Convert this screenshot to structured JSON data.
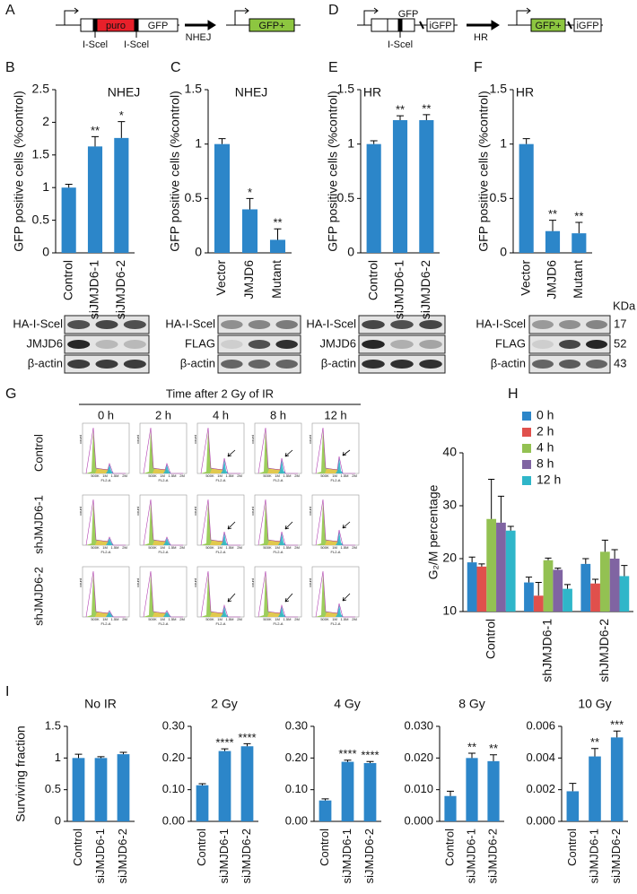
{
  "panel_labels": [
    "A",
    "B",
    "C",
    "D",
    "E",
    "F",
    "G",
    "H",
    "I"
  ],
  "diagram_a": {
    "cassette": "puro",
    "reporter": "GFP",
    "sites": [
      "I-Scel",
      "I-Scel"
    ],
    "pathway": "NHEJ",
    "product": "GFP+"
  },
  "diagram_d": {
    "reporter": "GFP",
    "donor": "iGFP",
    "site": "I-Scel",
    "pathway": "HR",
    "product": "GFP+",
    "product_donor": "iGFP"
  },
  "blots": [
    {
      "labels": [
        "HA-I-Scel",
        "JMJD6",
        "β-actin"
      ]
    },
    {
      "labels": [
        "HA-I-Scel",
        "FLAG",
        "β-actin"
      ]
    },
    {
      "labels": [
        "HA-I-Scel",
        "JMJD6",
        "β-actin"
      ]
    },
    {
      "labels": [
        "HA-I-Scel",
        "FLAG",
        "β-actin"
      ]
    }
  ],
  "molecular_weights": {
    "unit": "KDa",
    "values": [
      17,
      52,
      43
    ]
  },
  "flow": {
    "title": "Time after 2 Gy of IR",
    "times": [
      "0 h",
      "2 h",
      "4 h",
      "8 h",
      "12 h"
    ],
    "rows": [
      "Control",
      "shJMJD6-1",
      "shJMJD6-2"
    ],
    "x_label": "FL2-A",
    "y_label": "count",
    "x_ticks": [
      "500K",
      "1M",
      "1.5M",
      "2M"
    ]
  },
  "chart_data": [
    {
      "type": "bar",
      "title": "NHEJ",
      "y_label": "GFP positive cells (%control)",
      "categories": [
        "Control",
        "siJMJD6-1",
        "siJMJD6-2"
      ],
      "values": [
        1.0,
        1.63,
        1.76
      ],
      "errors": [
        0.05,
        0.15,
        0.25
      ],
      "annotations": [
        null,
        "**",
        "*"
      ],
      "color": "#2c86c9",
      "ylim": [
        0,
        2.5
      ],
      "yticks": [
        0,
        0.5,
        1,
        1.5,
        2,
        2.5
      ]
    },
    {
      "type": "bar",
      "title": "NHEJ",
      "y_label": "GFP positive cells (%control)",
      "categories": [
        "Vector",
        "JMJD6",
        "Mutant"
      ],
      "values": [
        1.0,
        0.4,
        0.12
      ],
      "errors": [
        0.05,
        0.1,
        0.1
      ],
      "annotations": [
        null,
        "*",
        "**"
      ],
      "color": "#2c86c9",
      "ylim": [
        0,
        1.5
      ],
      "yticks": [
        0,
        0.5,
        1,
        1.5
      ]
    },
    {
      "type": "bar",
      "title": "HR",
      "y_label": "GFP positive cells (%control)",
      "categories": [
        "Control",
        "siJMJD6-1",
        "siJMJD6-2"
      ],
      "values": [
        1.0,
        1.22,
        1.22
      ],
      "errors": [
        0.03,
        0.04,
        0.05
      ],
      "annotations": [
        null,
        "**",
        "**"
      ],
      "color": "#2c86c9",
      "ylim": [
        0,
        1.5
      ],
      "yticks": [
        0,
        0.5,
        1,
        1.5
      ]
    },
    {
      "type": "bar",
      "title": "HR",
      "y_label": "GFP positive cells (%control)",
      "categories": [
        "Vector",
        "JMJD6",
        "Mutant"
      ],
      "values": [
        1.0,
        0.2,
        0.18
      ],
      "errors": [
        0.05,
        0.1,
        0.1
      ],
      "annotations": [
        null,
        "**",
        "**"
      ],
      "color": "#2c86c9",
      "ylim": [
        0,
        1.5
      ],
      "yticks": [
        0,
        0.5,
        1,
        1.5
      ]
    },
    {
      "type": "bar",
      "y_label": "G₂/M percentage",
      "legend": "upper right",
      "categories": [
        "Control",
        "shJMJD6-1",
        "shJMJD6-2"
      ],
      "series": [
        {
          "name": "0 h",
          "color": "#2c86c9",
          "values": [
            19.3,
            15.5,
            19.0
          ],
          "errors": [
            1.0,
            1.0,
            1.0
          ]
        },
        {
          "name": "2 h",
          "color": "#e0504c",
          "values": [
            18.5,
            13.0,
            15.3
          ],
          "errors": [
            0.5,
            2.5,
            0.8
          ]
        },
        {
          "name": "4 h",
          "color": "#93c152",
          "values": [
            27.5,
            19.7,
            21.3
          ],
          "errors": [
            7.5,
            0.4,
            2.2
          ]
        },
        {
          "name": "8 h",
          "color": "#8064a2",
          "values": [
            26.8,
            17.9,
            20.0
          ],
          "errors": [
            5.0,
            0.3,
            1.7
          ]
        },
        {
          "name": "12 h",
          "color": "#2fb6c9",
          "values": [
            25.3,
            14.3,
            16.7
          ],
          "errors": [
            0.8,
            0.8,
            2.0
          ]
        }
      ],
      "ylim": [
        10,
        40
      ],
      "yticks": [
        10,
        20,
        30,
        40
      ]
    },
    {
      "type": "bar",
      "title": "No IR",
      "y_label": "Surviving fraction",
      "categories": [
        "Control",
        "siJMJD6-1",
        "siJMJD6-2"
      ],
      "values": [
        1.0,
        1.0,
        1.06
      ],
      "errors": [
        0.06,
        0.02,
        0.03
      ],
      "color": "#2c86c9",
      "ylim": [
        0,
        1.5
      ],
      "yticks": [
        0,
        0.5,
        1,
        1.5
      ]
    },
    {
      "type": "bar",
      "title": "2 Gy",
      "categories": [
        "Control",
        "siJMJD6-1",
        "siJMJD6-2"
      ],
      "values": [
        0.114,
        0.222,
        0.237
      ],
      "errors": [
        0.005,
        0.007,
        0.008
      ],
      "annotations": [
        null,
        "****",
        "****"
      ],
      "color": "#2c86c9",
      "ylim": [
        0,
        0.3
      ],
      "yticks": [
        {
          "value": 0,
          "label": "0.00"
        },
        {
          "value": 0.1,
          "label": "0.10"
        },
        {
          "value": 0.2,
          "label": "0.20"
        },
        {
          "value": 0.3,
          "label": "0.30"
        }
      ]
    },
    {
      "type": "bar",
      "title": "4 Gy",
      "categories": [
        "Control",
        "siJMJD6-1",
        "siJMJD6-2"
      ],
      "values": [
        0.066,
        0.188,
        0.184
      ],
      "errors": [
        0.005,
        0.005,
        0.005
      ],
      "annotations": [
        null,
        "****",
        "****"
      ],
      "color": "#2c86c9",
      "ylim": [
        0,
        0.3
      ],
      "yticks": [
        {
          "value": 0,
          "label": "0.00"
        },
        {
          "value": 0.1,
          "label": "0.10"
        },
        {
          "value": 0.2,
          "label": "0.20"
        },
        {
          "value": 0.3,
          "label": "0.30"
        }
      ]
    },
    {
      "type": "bar",
      "title": "8 Gy",
      "categories": [
        "Control",
        "siJMJD6-1",
        "siJMJD6-2"
      ],
      "values": [
        0.008,
        0.02,
        0.019
      ],
      "errors": [
        0.0015,
        0.0015,
        0.002
      ],
      "annotations": [
        null,
        "**",
        "**"
      ],
      "color": "#2c86c9",
      "ylim": [
        0,
        0.03
      ],
      "yticks": [
        {
          "value": 0,
          "label": "0.000"
        },
        {
          "value": 0.01,
          "label": "0.010"
        },
        {
          "value": 0.02,
          "label": "0.020"
        },
        {
          "value": 0.03,
          "label": "0.030"
        }
      ]
    },
    {
      "type": "bar",
      "title": "10 Gy",
      "categories": [
        "Control",
        "siJMJD6-1",
        "siJMJD6-2"
      ],
      "values": [
        0.0019,
        0.0041,
        0.0053
      ],
      "errors": [
        0.0005,
        0.0005,
        0.0004
      ],
      "annotations": [
        null,
        "**",
        "***"
      ],
      "color": "#2c86c9",
      "ylim": [
        0,
        0.006
      ],
      "yticks": [
        {
          "value": 0,
          "label": "0.000"
        },
        {
          "value": 0.002,
          "label": "0.002"
        },
        {
          "value": 0.004,
          "label": "0.004"
        },
        {
          "value": 0.006,
          "label": "0.006"
        }
      ]
    }
  ]
}
